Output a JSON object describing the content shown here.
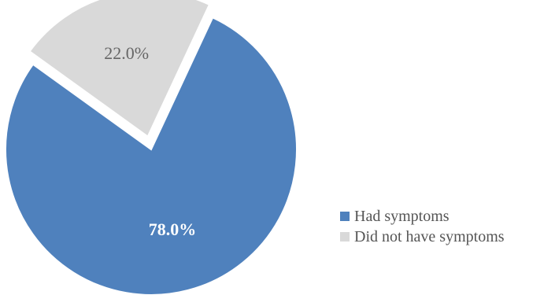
{
  "chart_data": {
    "type": "pie",
    "title": "",
    "slices": [
      {
        "name": "Had symptoms",
        "value": 78.0,
        "label": "78.0%",
        "color": "#4f81bd",
        "label_color": "#ffffff",
        "exploded": false
      },
      {
        "name": "Did not have symptoms",
        "value": 22.0,
        "label": "22.0%",
        "color": "#d9d9d9",
        "label_color": "#666666",
        "exploded": true
      }
    ],
    "start_angle_deg_clockwise_from_top": 25,
    "legend": {
      "position": "bottom-right",
      "entries": [
        "Had symptoms",
        "Did not have symptoms"
      ]
    }
  }
}
